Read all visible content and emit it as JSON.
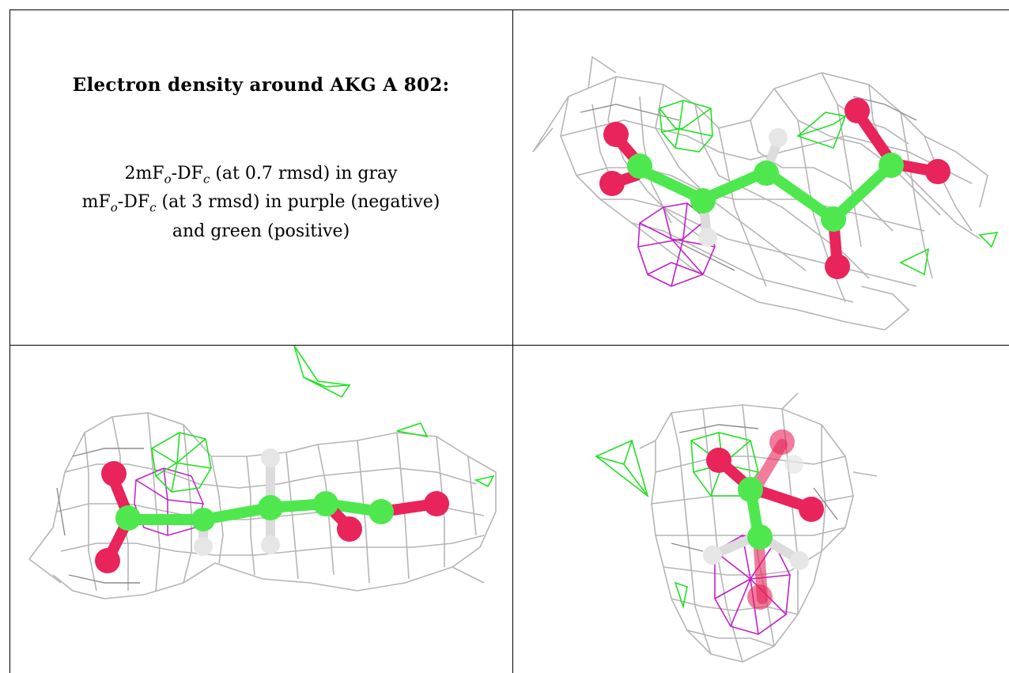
{
  "panel_text": {
    "title": "Electron density around AKG A 802:",
    "line1": {
      "a": "2mF",
      "sub1": "o",
      "b": "-DF",
      "sub2": "c",
      "c": " (at 0.7 rmsd) in gray"
    },
    "line2": {
      "a": "mF",
      "sub1": "o",
      "b": "-DF",
      "sub2": "c",
      "c": " (at 3 rmsd) in purple (negative)"
    },
    "line3": "and green (positive)"
  },
  "colors": {
    "mesh_gray": "#b8b8b8",
    "mesh_gray_dark": "#8a8a8a",
    "mesh_green": "#22e022",
    "mesh_purple": "#c020c8",
    "carbon": "#4ee84e",
    "oxygen": "#e8245a",
    "hydrogen": "#e6e6e6",
    "grid_line": "#000000"
  },
  "icons": [
    "molecule-view-top-right",
    "molecule-view-bottom-left",
    "molecule-view-bottom-right"
  ]
}
